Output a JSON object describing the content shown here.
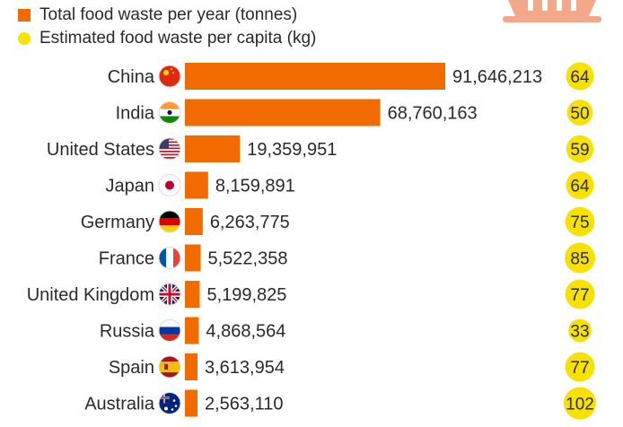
{
  "legend": {
    "total_label": "Total food waste per year (tonnes)",
    "capita_label": "Estimated food waste per capita (kg)"
  },
  "colors": {
    "bar": "#f26b00",
    "bubble": "#f7e100",
    "basket": "#f4a88a"
  },
  "chart_data": {
    "type": "bar",
    "orientation": "horizontal",
    "categories": [
      "China",
      "India",
      "United States",
      "Japan",
      "Germany",
      "France",
      "United Kingdom",
      "Russia",
      "Spain",
      "Australia"
    ],
    "flags": [
      "china-flag",
      "india-flag",
      "usa-flag",
      "japan-flag",
      "germany-flag",
      "france-flag",
      "uk-flag",
      "russia-flag",
      "spain-flag",
      "australia-flag"
    ],
    "series": [
      {
        "name": "Total food waste per year (tonnes)",
        "values": [
          91646213,
          68760163,
          19359951,
          8159891,
          6263775,
          5522358,
          5199825,
          4868564,
          3613954,
          2563110
        ],
        "labels": [
          "91,646,213",
          "68,760,163",
          "19,359,951",
          "8,159,891",
          "6,263,775",
          "5,522,358",
          "5,199,825",
          "4,868,564",
          "3,613,954",
          "2,563,110"
        ]
      },
      {
        "name": "Estimated food waste per capita (kg)",
        "values": [
          64,
          50,
          59,
          64,
          75,
          85,
          77,
          33,
          77,
          102
        ],
        "labels": [
          "64",
          "50",
          "59",
          "64",
          "75",
          "85",
          "77",
          "33",
          "77",
          "102"
        ]
      }
    ]
  }
}
